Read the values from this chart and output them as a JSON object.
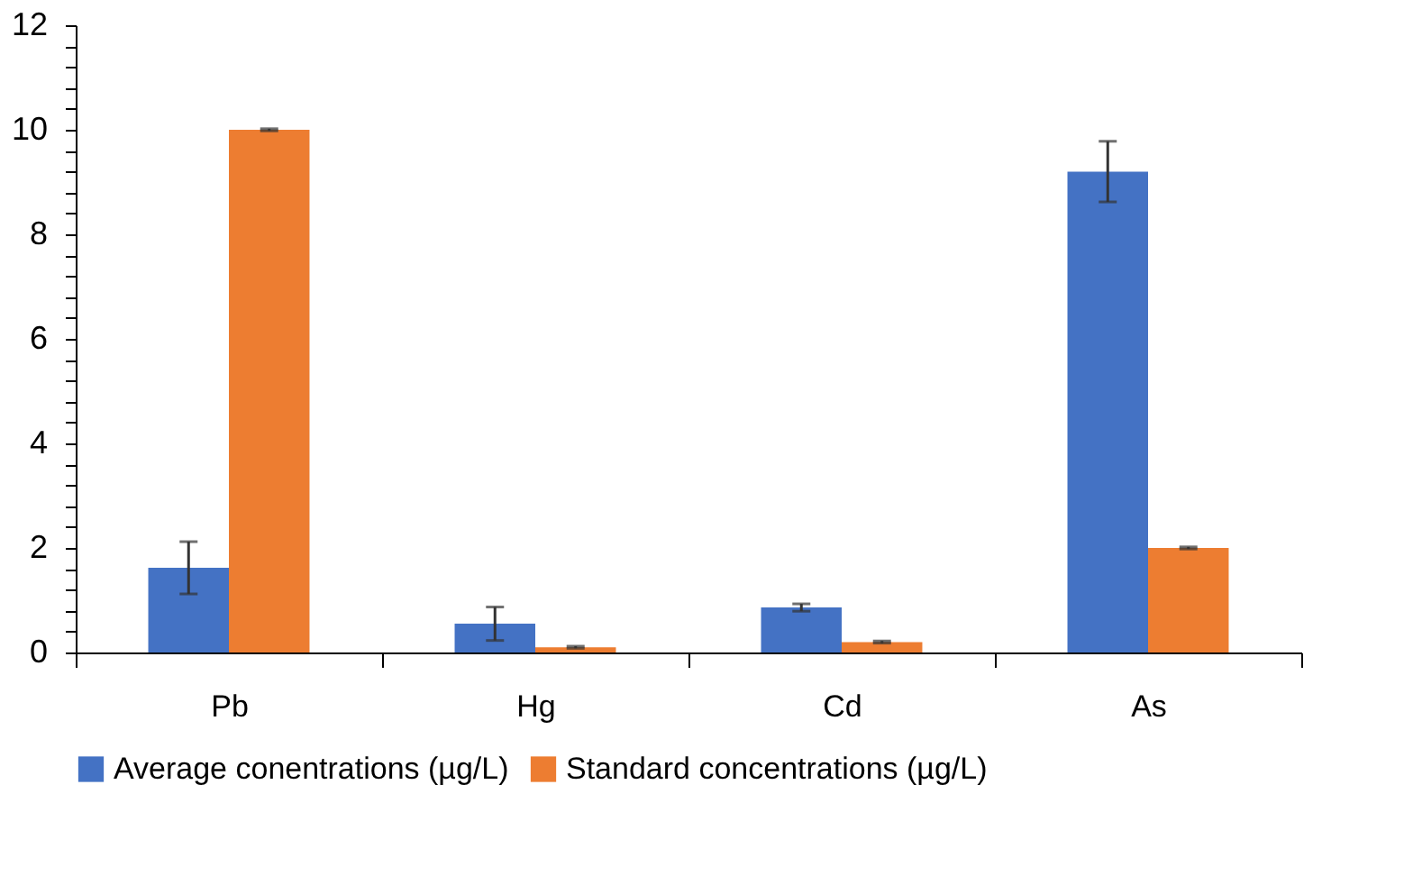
{
  "chart_data": {
    "type": "bar",
    "categories": [
      "Pb",
      "Hg",
      "Cd",
      "As"
    ],
    "series": [
      {
        "name": "Average conentrations (µg/L)",
        "color": "#4472c4",
        "values": [
          1.62,
          0.55,
          0.86,
          9.2
        ],
        "errors": [
          0.5,
          0.32,
          0.07,
          0.58
        ]
      },
      {
        "name": "Standard concentrations  (µg/L)",
        "color": "#ed7d31",
        "values": [
          10,
          0.1,
          0.2,
          2
        ],
        "errors": [
          0.02,
          0.02,
          0.02,
          0.02
        ]
      }
    ],
    "ylim": [
      0,
      12
    ],
    "yticks": [
      0,
      {
        "value": 0.4,
        "label": null
      },
      {
        "value": 0.8,
        "label": null
      },
      {
        "value": 1.2,
        "label": null
      },
      {
        "value": 1.6,
        "label": null
      },
      2,
      {
        "value": 2.4,
        "label": null
      },
      {
        "value": 2.8,
        "label": null
      },
      {
        "value": 3.2,
        "label": null
      },
      {
        "value": 3.6,
        "label": null
      },
      4,
      {
        "value": 4.4,
        "label": null
      },
      {
        "value": 4.8,
        "label": null
      },
      {
        "value": 5.2,
        "label": null
      },
      {
        "value": 5.6,
        "label": null
      },
      6,
      {
        "value": 6.4,
        "label": null
      },
      {
        "value": 6.8,
        "label": null
      },
      {
        "value": 7.2,
        "label": null
      },
      {
        "value": 7.6,
        "label": null
      },
      8,
      {
        "value": 8.4,
        "label": null
      },
      {
        "value": 8.8,
        "label": null
      },
      {
        "value": 9.2,
        "label": null
      },
      {
        "value": 9.6,
        "label": null
      },
      10,
      {
        "value": 10.4,
        "label": null
      },
      {
        "value": 10.8,
        "label": null
      },
      {
        "value": 11.2,
        "label": null
      },
      {
        "value": 11.6,
        "label": null
      },
      12
    ],
    "grid": false,
    "legend": "bottom"
  }
}
